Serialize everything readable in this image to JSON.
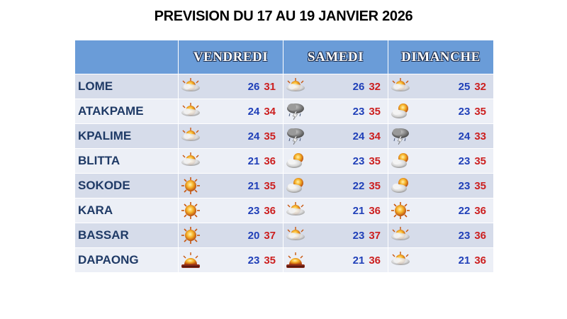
{
  "title": "PREVISION DU 17 AU 19 JANVIER 2026",
  "headers": [
    "VENDREDI",
    "SAMEDI",
    "DIMANCHE"
  ],
  "colors": {
    "header_bg": "#6a9cd8",
    "row_odd": "#d6dcea",
    "row_even": "#eceff6",
    "city": "#1f3a66",
    "min_temp": "#1f3fb8",
    "max_temp": "#cc1f1f"
  },
  "rows": [
    {
      "city": "LOME",
      "days": [
        {
          "icon": "sun-haze-icon",
          "min": "26",
          "max": "31"
        },
        {
          "icon": "sun-haze-icon",
          "min": "26",
          "max": "32"
        },
        {
          "icon": "sun-haze-icon",
          "min": "25",
          "max": "32"
        }
      ]
    },
    {
      "city": "ATAKPAME",
      "days": [
        {
          "icon": "sun-haze-icon",
          "min": "24",
          "max": "34"
        },
        {
          "icon": "thunderstorm-icon",
          "min": "23",
          "max": "35"
        },
        {
          "icon": "partly-cloudy-icon",
          "min": "23",
          "max": "35"
        }
      ]
    },
    {
      "city": "KPALIME",
      "days": [
        {
          "icon": "sun-haze-icon",
          "min": "24",
          "max": "35"
        },
        {
          "icon": "thunderstorm-icon",
          "min": "24",
          "max": "34"
        },
        {
          "icon": "thunderstorm-icon",
          "min": "24",
          "max": "33"
        }
      ]
    },
    {
      "city": "BLITTA",
      "days": [
        {
          "icon": "sun-haze-icon",
          "min": "21",
          "max": "36"
        },
        {
          "icon": "partly-cloudy-icon",
          "min": "23",
          "max": "35"
        },
        {
          "icon": "partly-cloudy-icon",
          "min": "23",
          "max": "35"
        }
      ]
    },
    {
      "city": "SOKODE",
      "days": [
        {
          "icon": "sun-icon",
          "min": "21",
          "max": "35"
        },
        {
          "icon": "partly-cloudy-icon",
          "min": "22",
          "max": "35"
        },
        {
          "icon": "partly-cloudy-icon",
          "min": "23",
          "max": "35"
        }
      ]
    },
    {
      "city": "KARA",
      "days": [
        {
          "icon": "sun-icon",
          "min": "23",
          "max": "36"
        },
        {
          "icon": "sun-haze-icon",
          "min": "21",
          "max": "36"
        },
        {
          "icon": "sun-icon",
          "min": "22",
          "max": "36"
        }
      ]
    },
    {
      "city": "BASSAR",
      "days": [
        {
          "icon": "sun-icon",
          "min": "20",
          "max": "37"
        },
        {
          "icon": "sun-haze-icon",
          "min": "23",
          "max": "37"
        },
        {
          "icon": "sun-haze-icon",
          "min": "23",
          "max": "36"
        }
      ]
    },
    {
      "city": "DAPAONG",
      "days": [
        {
          "icon": "dust-haze-icon",
          "min": "23",
          "max": "35"
        },
        {
          "icon": "dust-haze-icon",
          "min": "21",
          "max": "36"
        },
        {
          "icon": "sun-haze-icon",
          "min": "21",
          "max": "36"
        }
      ]
    }
  ]
}
